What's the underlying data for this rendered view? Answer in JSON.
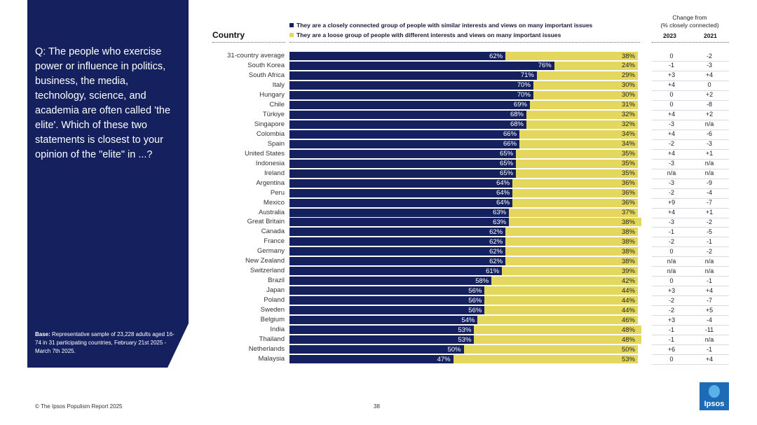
{
  "question": "Q: The people who exercise power or influence in politics, business, the media, technology, science, and academia are often called 'the elite'. Which of these two statements is closest to your opinion of the \"elite\" in ...?",
  "base_label": "Base:",
  "base_text": " Representative sample of 23,228 adults aged 16-74 in 31 participating countries, February 21st 2025 - March 7th 2025.",
  "country_header": "Country",
  "legend": {
    "closely": "They are a closely connected group of people with similar interests and views on many important issues",
    "loose": "They are a loose group of people with different interests and views on many important issues"
  },
  "change_header": "Change from\n(% closely connected)",
  "year_a": "2023",
  "year_b": "2021",
  "footer": "© The Ipsos Populism Report 2025",
  "page_number": "38",
  "logo_text": "Ipsos",
  "colors": {
    "closely": "#14215e",
    "loose": "#e3d85d",
    "panel": "#14215e",
    "logo": "#1d6bb6"
  },
  "chart_data": {
    "type": "bar",
    "stacked": true,
    "orientation": "horizontal",
    "categories": [
      "31-country average",
      "South Korea",
      "South Africa",
      "Italy",
      "Hungary",
      "Chile",
      "Türkiye",
      "Singapore",
      "Colombia",
      "Spain",
      "United States",
      "Indonesia",
      "Ireland",
      "Argentina",
      "Peru",
      "Mexico",
      "Australia",
      "Great Britain",
      "Canada",
      "France",
      "Germany",
      "New Zealand",
      "Switzerland",
      "Brazil",
      "Japan",
      "Poland",
      "Sweden",
      "Belgium",
      "India",
      "Thailand",
      "Netherlands",
      "Malaysia"
    ],
    "series": [
      {
        "name": "They are a closely connected group of people with similar interests and views on many important issues",
        "values": [
          62,
          76,
          71,
          70,
          70,
          69,
          68,
          68,
          66,
          66,
          65,
          65,
          65,
          64,
          64,
          64,
          63,
          63,
          62,
          62,
          62,
          62,
          61,
          58,
          56,
          56,
          56,
          54,
          53,
          53,
          50,
          47
        ]
      },
      {
        "name": "They are a loose group of people with different interests and views on many important issues",
        "values": [
          38,
          24,
          29,
          30,
          30,
          31,
          32,
          32,
          34,
          34,
          35,
          35,
          35,
          36,
          36,
          36,
          37,
          38,
          38,
          38,
          38,
          38,
          39,
          42,
          44,
          44,
          44,
          46,
          48,
          48,
          50,
          53
        ]
      }
    ],
    "change_2023": [
      "0",
      "-1",
      "+3",
      "+4",
      "0",
      "0",
      "+4",
      "-3",
      "+4",
      "-2",
      "+4",
      "-3",
      "n/a",
      "-3",
      "-2",
      "+9",
      "+4",
      "-3",
      "-1",
      "-2",
      "0",
      "n/a",
      "n/a",
      "0",
      "+3",
      "-2",
      "-2",
      "+3",
      "-1",
      "-1",
      "+6",
      "0"
    ],
    "change_2021": [
      "-2",
      "-3",
      "+4",
      "0",
      "+2",
      "-8",
      "+2",
      "n/a",
      "-6",
      "-3",
      "+1",
      "n/a",
      "n/a",
      "-9",
      "-4",
      "-7",
      "+1",
      "-2",
      "-5",
      "-1",
      "-2",
      "n/a",
      "n/a",
      "-1",
      "+4",
      "-7",
      "+5",
      "-4",
      "-11",
      "n/a",
      "-1",
      "+4"
    ],
    "xlim": [
      0,
      100
    ]
  }
}
